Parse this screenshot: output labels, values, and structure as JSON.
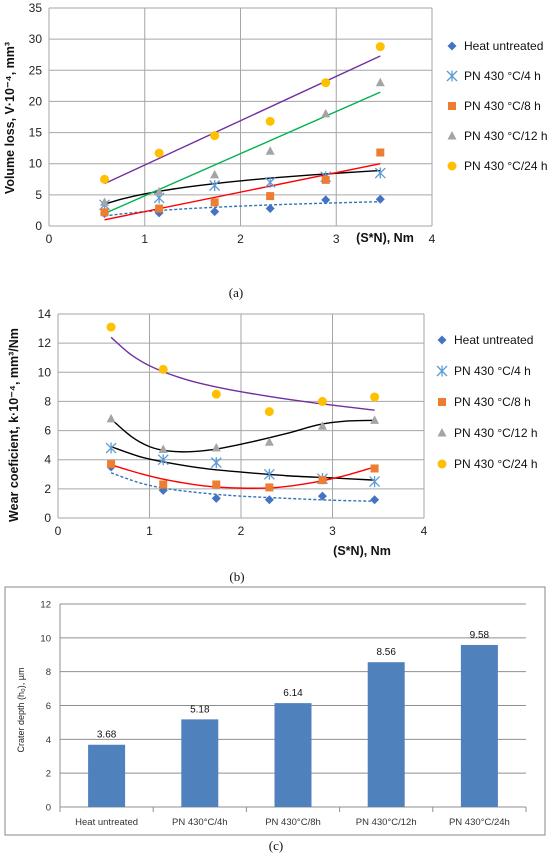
{
  "chart_data": [
    {
      "type": "scatter",
      "caption": "(a)",
      "xlabel": "(S*N), Nm",
      "ylabel": "Volume loss, V·10⁻⁴, mm³",
      "xlim": [
        0,
        4
      ],
      "ylim": [
        0,
        35
      ],
      "xticks": [
        "0",
        "1",
        "2",
        "3",
        "4"
      ],
      "yticks": [
        "0",
        "5",
        "10",
        "15",
        "20",
        "25",
        "30",
        "35"
      ],
      "grid": true,
      "legend_position": "right",
      "series": [
        {
          "name": "Heat untreated",
          "marker": "diamond",
          "color": "#4472C4",
          "x": [
            0.58,
            1.15,
            1.73,
            2.31,
            2.89,
            3.46
          ],
          "y": [
            2.0,
            2.1,
            2.3,
            2.8,
            4.2,
            4.3
          ],
          "trend": {
            "kind": "log",
            "color": "#2E75B6",
            "dashed": true,
            "x0": 0.58,
            "x1": 3.46,
            "y0": 1.6,
            "y1": 3.9
          }
        },
        {
          "name": "PN 430 °C/4 h",
          "marker": "x",
          "color": "#5B9BD5",
          "x": [
            0.58,
            1.15,
            1.73,
            2.31,
            2.89,
            3.46
          ],
          "y": [
            3.4,
            4.5,
            6.5,
            7.0,
            7.9,
            8.5
          ],
          "trend": {
            "kind": "log",
            "color": "#000000",
            "dashed": false,
            "x0": 0.58,
            "x1": 3.46,
            "y0": 3.5,
            "y1": 8.9
          }
        },
        {
          "name": "PN 430 °C/8 h",
          "marker": "square",
          "color": "#ED7D31",
          "x": [
            0.58,
            1.15,
            1.73,
            2.31,
            2.89,
            3.46
          ],
          "y": [
            2.2,
            2.8,
            3.8,
            4.8,
            7.4,
            11.8
          ],
          "trend": {
            "kind": "linear",
            "color": "#FF0000",
            "dashed": false,
            "x0": 0.58,
            "x1": 3.46,
            "y0": 1.0,
            "y1": 10.0
          }
        },
        {
          "name": "PN 430 °C/12 h",
          "marker": "triangle",
          "color": "#A5A5A5",
          "x": [
            0.58,
            1.15,
            1.73,
            2.31,
            2.89,
            3.46
          ],
          "y": [
            3.8,
            5.5,
            8.2,
            12.0,
            18.0,
            23.0
          ],
          "trend": {
            "kind": "linear",
            "color": "#00B050",
            "dashed": false,
            "x0": 0.58,
            "x1": 3.46,
            "y0": 2.0,
            "y1": 21.5
          }
        },
        {
          "name": "PN 430 °C/24 h",
          "marker": "circle",
          "color": "#FFC000",
          "x": [
            0.58,
            1.15,
            1.73,
            2.31,
            2.89,
            3.46
          ],
          "y": [
            7.5,
            11.7,
            14.5,
            16.8,
            23.0,
            28.8
          ],
          "trend": {
            "kind": "linear",
            "color": "#7030A0",
            "dashed": false,
            "x0": 0.58,
            "x1": 3.46,
            "y0": 6.8,
            "y1": 27.3
          }
        }
      ]
    },
    {
      "type": "scatter",
      "caption": "(b)",
      "xlabel": "(S*N), Nm",
      "ylabel": "Wear coeficient, k·10⁻⁴, mm³/Nm",
      "xlim": [
        0,
        4
      ],
      "ylim": [
        0,
        14
      ],
      "xticks": [
        "0",
        "1",
        "2",
        "3",
        "4"
      ],
      "yticks": [
        "0",
        "2",
        "4",
        "6",
        "8",
        "10",
        "12",
        "14"
      ],
      "grid": true,
      "legend_position": "right",
      "series": [
        {
          "name": "Heat untreated",
          "marker": "diamond",
          "color": "#4472C4",
          "x": [
            0.58,
            1.15,
            1.73,
            2.31,
            2.89,
            3.46
          ],
          "y": [
            3.5,
            1.9,
            1.35,
            1.25,
            1.5,
            1.25
          ],
          "trend": {
            "kind": "power",
            "color": "#2E75B6",
            "dashed": true,
            "pts": [
              [
                0.58,
                3.1
              ],
              [
                0.9,
                2.4
              ],
              [
                1.2,
                2.0
              ],
              [
                1.6,
                1.7
              ],
              [
                2.0,
                1.5
              ],
              [
                2.5,
                1.35
              ],
              [
                3.0,
                1.22
              ],
              [
                3.46,
                1.15
              ]
            ]
          }
        },
        {
          "name": "PN 430 °C/4 h",
          "marker": "x",
          "color": "#5B9BD5",
          "x": [
            0.58,
            1.15,
            1.73,
            2.31,
            2.89,
            3.46
          ],
          "y": [
            4.8,
            4.0,
            3.8,
            3.0,
            2.7,
            2.5
          ],
          "trend": {
            "kind": "power",
            "color": "#000000",
            "dashed": false,
            "pts": [
              [
                0.58,
                4.9
              ],
              [
                0.9,
                4.2
              ],
              [
                1.2,
                3.8
              ],
              [
                1.6,
                3.4
              ],
              [
                2.0,
                3.15
              ],
              [
                2.5,
                2.9
              ],
              [
                3.0,
                2.75
              ],
              [
                3.46,
                2.6
              ]
            ]
          }
        },
        {
          "name": "PN 430 °C/8 h",
          "marker": "square",
          "color": "#ED7D31",
          "x": [
            0.58,
            1.15,
            1.73,
            2.31,
            2.89,
            3.46
          ],
          "y": [
            3.7,
            2.3,
            2.3,
            2.1,
            2.6,
            3.4
          ],
          "trend": {
            "kind": "poly",
            "color": "#FF0000",
            "dashed": false,
            "pts": [
              [
                0.58,
                3.65
              ],
              [
                0.9,
                3.05
              ],
              [
                1.2,
                2.6
              ],
              [
                1.6,
                2.2
              ],
              [
                2.0,
                2.05
              ],
              [
                2.4,
                2.1
              ],
              [
                2.8,
                2.45
              ],
              [
                3.1,
                2.85
              ],
              [
                3.46,
                3.5
              ]
            ]
          }
        },
        {
          "name": "PN 430 °C/12 h",
          "marker": "triangle",
          "color": "#A5A5A5",
          "x": [
            0.58,
            1.15,
            1.73,
            2.31,
            2.89,
            3.46
          ],
          "y": [
            6.8,
            4.7,
            4.8,
            5.2,
            6.3,
            6.7
          ],
          "trend": {
            "kind": "poly",
            "color": "#000000",
            "dashed": false,
            "pts": [
              [
                0.58,
                6.8
              ],
              [
                0.8,
                5.6
              ],
              [
                1.0,
                4.9
              ],
              [
                1.2,
                4.6
              ],
              [
                1.45,
                4.55
              ],
              [
                1.75,
                4.75
              ],
              [
                2.1,
                5.2
              ],
              [
                2.5,
                5.8
              ],
              [
                2.85,
                6.4
              ],
              [
                3.15,
                6.65
              ],
              [
                3.46,
                6.7
              ]
            ]
          }
        },
        {
          "name": "PN 430 °C/24 h",
          "marker": "circle",
          "color": "#FFC000",
          "x": [
            0.58,
            1.15,
            1.73,
            2.31,
            2.89,
            3.46
          ],
          "y": [
            13.1,
            10.2,
            8.5,
            7.3,
            8.0,
            8.3
          ],
          "trend": {
            "kind": "power",
            "color": "#7030A0",
            "dashed": false,
            "pts": [
              [
                0.58,
                12.4
              ],
              [
                0.8,
                11.2
              ],
              [
                1.05,
                10.3
              ],
              [
                1.4,
                9.5
              ],
              [
                1.8,
                8.9
              ],
              [
                2.3,
                8.35
              ],
              [
                2.8,
                7.9
              ],
              [
                3.46,
                7.4
              ]
            ]
          }
        }
      ]
    },
    {
      "type": "bar",
      "caption": "(c)",
      "ylabel": "Crater depth (h₀), µm",
      "xlabel": "",
      "ylim": [
        0,
        12
      ],
      "yticks": [
        "0",
        "2",
        "4",
        "6",
        "8",
        "10",
        "12"
      ],
      "grid": true,
      "bar_color": "#4F81BD",
      "categories": [
        "Heat untreated",
        "PN 430°C/4h",
        "PN 430°C/8h",
        "PN 430°C/12h",
        "PN 430°C/24h"
      ],
      "values": [
        3.68,
        5.18,
        6.14,
        8.56,
        9.58
      ],
      "value_labels": [
        "3.68",
        "5.18",
        "6.14",
        "8.56",
        "9.58"
      ]
    }
  ]
}
